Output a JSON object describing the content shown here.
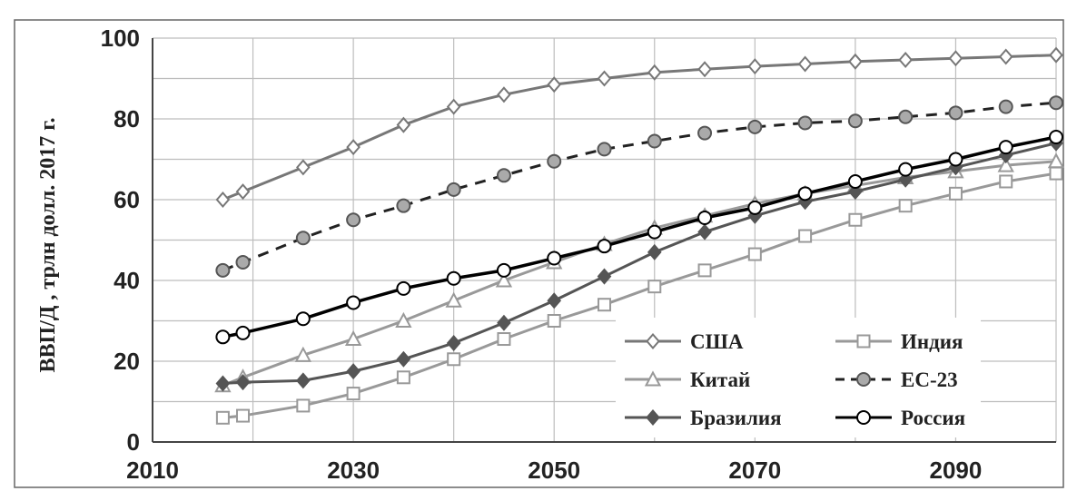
{
  "chart_data": {
    "type": "line",
    "ylabel": "ВВП/Д , трлн долл. 2017 г.",
    "xlim": [
      2010,
      2100
    ],
    "ylim": [
      0,
      100
    ],
    "x_ticks": [
      2010,
      2030,
      2050,
      2070,
      2090
    ],
    "y_ticks": [
      0,
      20,
      40,
      60,
      80,
      100
    ],
    "grid": true,
    "legend_position": "bottom-right",
    "x": [
      2017,
      2019,
      2025,
      2030,
      2035,
      2040,
      2045,
      2050,
      2055,
      2060,
      2065,
      2070,
      2075,
      2080,
      2085,
      2090,
      2095,
      2100
    ],
    "series": [
      {
        "name": "США",
        "color": "#777777",
        "dash": "solid",
        "marker": "diamond",
        "marker_fill": "#ffffff",
        "values": [
          60,
          62,
          68,
          73,
          78.5,
          83,
          86,
          88.5,
          90,
          91.5,
          92.3,
          93,
          93.6,
          94.2,
          94.6,
          95,
          95.4,
          95.8
        ]
      },
      {
        "name": "Индия",
        "color": "#999999",
        "dash": "solid",
        "marker": "square",
        "marker_fill": "#ffffff",
        "values": [
          6,
          6.5,
          9,
          12,
          16,
          20.5,
          25.5,
          30,
          34,
          38.5,
          42.5,
          46.5,
          51,
          55,
          58.5,
          61.5,
          64.5,
          66.5
        ]
      },
      {
        "name": "Китай",
        "color": "#999999",
        "dash": "solid",
        "marker": "triangle",
        "marker_fill": "#ffffff",
        "values": [
          14,
          16,
          21.5,
          25.5,
          30,
          35,
          40,
          44.5,
          49,
          53,
          56,
          59,
          61.5,
          63.5,
          65.5,
          67,
          68.5,
          69.5
        ]
      },
      {
        "name": "ЕС-23",
        "color": "#222222",
        "dash": "dashed",
        "marker": "circle",
        "marker_fill": "#aaaaaa",
        "values": [
          42.5,
          44.5,
          50.5,
          55,
          58.5,
          62.5,
          66,
          69.5,
          72.5,
          74.5,
          76.5,
          78,
          79,
          79.5,
          80.5,
          81.5,
          83,
          84
        ]
      },
      {
        "name": "Бразилия",
        "color": "#555555",
        "dash": "solid",
        "marker": "diamond",
        "marker_fill": "#555555",
        "values": [
          14.5,
          14.8,
          15.2,
          17.5,
          20.5,
          24.5,
          29.5,
          35,
          41,
          47,
          52,
          56,
          59.5,
          62,
          65,
          68,
          71,
          74
        ]
      },
      {
        "name": "Россия",
        "color": "#000000",
        "dash": "solid",
        "marker": "circle",
        "marker_fill": "#ffffff",
        "values": [
          26,
          27,
          30.5,
          34.5,
          38,
          40.5,
          42.5,
          45.5,
          48.5,
          52,
          55.5,
          58,
          61.5,
          64.5,
          67.5,
          70,
          73,
          75.5
        ]
      }
    ]
  }
}
